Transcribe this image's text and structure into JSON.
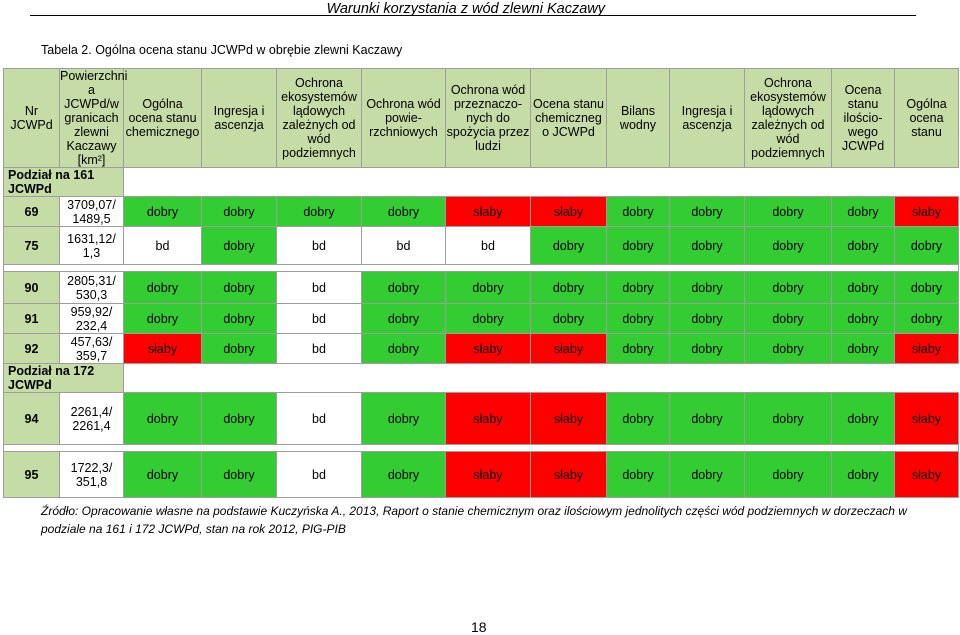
{
  "running_header": "Warunki korzystania z wód zlewni Kaczawy",
  "caption": "Tabela 2. Ogólna ocena stanu JCWPd w obrębie zlewni Kaczawy",
  "headers": {
    "nr": "Nr JCWPd",
    "area": "Powierzchni a JCWPd/w granicach zlewni Kaczawy [km²]",
    "chem": "Ogólna ocena stanu chemicznego",
    "ingres1": "Ingresja i ascenzja",
    "ecosys1": "Ochrona ekosystemów lądowych zależnych od wód podziemnych",
    "surface": "Ochrona wód powie-rzchniowych",
    "drinking": "Ochrona wód przeznaczo-nych do spożycia przez ludzi",
    "chem_state": "Ocena stanu chemiczneg o JCWPd",
    "balance": "Bilans wodny",
    "ingres2": "Ingresja i ascenzja",
    "ecosys2": "Ochrona ekosystemów lądowych zależnych od wód podziemnych",
    "quant": "Ocena stanu ilościo-wego JCWPd",
    "overall": "Ogólna ocena stanu"
  },
  "subheaders": {
    "div161": "Podział na 161 JCWPd",
    "div172": "Podział na 172 JCWPd"
  },
  "rows": [
    {
      "nr": "69",
      "area1": "3709,07/",
      "area2": "1489,5",
      "cells": [
        "dobry",
        "dobry",
        "dobry",
        "dobry",
        "słaby",
        "słaby",
        "dobry",
        "dobry",
        "dobry",
        "dobry",
        "słaby"
      ]
    },
    {
      "nr": "75",
      "area1": "1631,12/",
      "area2": "1,3",
      "cells": [
        "bd",
        "dobry",
        "bd",
        "bd",
        "bd",
        "dobry",
        "dobry",
        "dobry",
        "dobry",
        "dobry",
        "dobry"
      ]
    },
    {
      "nr": "90",
      "area1": "2805,31/",
      "area2": "530,3",
      "cells": [
        "dobry",
        "dobry",
        "bd",
        "dobry",
        "dobry",
        "dobry",
        "dobry",
        "dobry",
        "dobry",
        "dobry",
        "dobry"
      ]
    },
    {
      "nr": "91",
      "area1": "959,92/",
      "area2": "232,4",
      "cells": [
        "dobry",
        "dobry",
        "bd",
        "dobry",
        "dobry",
        "dobry",
        "dobry",
        "dobry",
        "dobry",
        "dobry",
        "dobry"
      ]
    },
    {
      "nr": "92",
      "area1": "457,63/",
      "area2": "359,7",
      "cells": [
        "słaby",
        "dobry",
        "bd",
        "dobry",
        "słaby",
        "słaby",
        "dobry",
        "dobry",
        "dobry",
        "dobry",
        "słaby"
      ]
    },
    {
      "nr": "94",
      "area1": "2261,4/",
      "area2": "2261,4",
      "cells": [
        "dobry",
        "dobry",
        "bd",
        "dobry",
        "słaby",
        "słaby",
        "dobry",
        "dobry",
        "dobry",
        "dobry",
        "słaby"
      ]
    },
    {
      "nr": "95",
      "area1": "1722,3/",
      "area2": "351,8",
      "cells": [
        "dobry",
        "dobry",
        "bd",
        "dobry",
        "słaby",
        "słaby",
        "dobry",
        "dobry",
        "dobry",
        "dobry",
        "słaby"
      ]
    }
  ],
  "colors": {
    "good": "#33cc33",
    "poor": "#ff0000",
    "no_data": "#ffffff",
    "header": "#c5dca6"
  },
  "footnote": "Źródło: Opracowanie własne na podstawie Kuczyńska A., 2013, Raport o stanie chemicznym oraz ilościowym jednolitych części wód podziemnych w dorzeczach w podziale na 161 i 172 JCWPd, stan na rok 2012, PIG-PIB",
  "page_number": "18"
}
